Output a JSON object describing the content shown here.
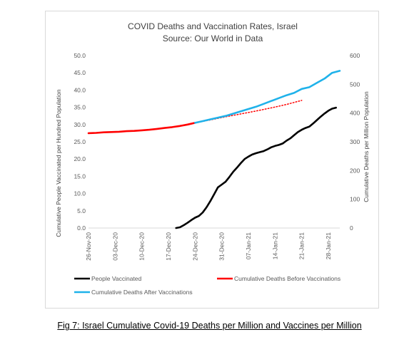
{
  "caption": "Fig 7: Israel Cumulative Covid-19 Deaths per Million and Vaccines per Million",
  "chart_data": {
    "type": "line",
    "title": "COVID Deaths and Vaccination Rates, Israel",
    "subtitle": "Source: Our World in Data",
    "ylabel": "Cumulative People Vaccinated per Hundred Population",
    "y2label": "Cumulative Deaths per Million Population",
    "xlabel": "",
    "x_start": "26-Nov-20",
    "x_end": "31-Jan-21",
    "ylim": [
      0,
      50
    ],
    "y2lim": [
      0,
      600
    ],
    "y_ticks": [
      "0.0",
      "5.0",
      "10.0",
      "15.0",
      "20.0",
      "25.0",
      "30.0",
      "35.0",
      "40.0",
      "45.0",
      "50.0"
    ],
    "y2_ticks": [
      "0",
      "100",
      "200",
      "300",
      "400",
      "500",
      "600"
    ],
    "x_ticks": [
      {
        "date": "2020-11-26",
        "label": "26-Nov-20"
      },
      {
        "date": "2020-12-03",
        "label": "03-Dec-20"
      },
      {
        "date": "2020-12-10",
        "label": "10-Dec-20"
      },
      {
        "date": "2020-12-17",
        "label": "17-Dec-20"
      },
      {
        "date": "2020-12-24",
        "label": "24-Dec-20"
      },
      {
        "date": "2020-12-31",
        "label": "31-Dec-20"
      },
      {
        "date": "2021-01-07",
        "label": "07-Jan-21"
      },
      {
        "date": "2021-01-14",
        "label": "14-Jan-21"
      },
      {
        "date": "2021-01-21",
        "label": "21-Jan-21"
      },
      {
        "date": "2021-01-28",
        "label": "28-Jan-21"
      }
    ],
    "grid": false,
    "legend_position": "bottom",
    "series": [
      {
        "name": "People Vaccinated",
        "axis": "left",
        "color": "#000000",
        "style": "solid",
        "points": [
          [
            "2020-12-19",
            0.0
          ],
          [
            "2020-12-20",
            0.2
          ],
          [
            "2020-12-21",
            0.8
          ],
          [
            "2020-12-22",
            1.5
          ],
          [
            "2020-12-23",
            2.3
          ],
          [
            "2020-12-24",
            3.0
          ],
          [
            "2020-12-25",
            3.5
          ],
          [
            "2020-12-26",
            4.5
          ],
          [
            "2020-12-27",
            6.0
          ],
          [
            "2020-12-28",
            7.8
          ],
          [
            "2020-12-29",
            9.8
          ],
          [
            "2020-12-30",
            11.8
          ],
          [
            "2020-12-31",
            12.6
          ],
          [
            "2021-01-01",
            13.4
          ],
          [
            "2021-01-02",
            14.8
          ],
          [
            "2021-01-03",
            16.3
          ],
          [
            "2021-01-04",
            17.5
          ],
          [
            "2021-01-05",
            18.8
          ],
          [
            "2021-01-06",
            20.0
          ],
          [
            "2021-01-07",
            20.7
          ],
          [
            "2021-01-08",
            21.3
          ],
          [
            "2021-01-09",
            21.7
          ],
          [
            "2021-01-10",
            22.0
          ],
          [
            "2021-01-11",
            22.3
          ],
          [
            "2021-01-12",
            22.8
          ],
          [
            "2021-01-13",
            23.4
          ],
          [
            "2021-01-14",
            23.8
          ],
          [
            "2021-01-15",
            24.1
          ],
          [
            "2021-01-16",
            24.5
          ],
          [
            "2021-01-17",
            25.3
          ],
          [
            "2021-01-18",
            26.0
          ],
          [
            "2021-01-19",
            26.9
          ],
          [
            "2021-01-20",
            27.8
          ],
          [
            "2021-01-21",
            28.5
          ],
          [
            "2021-01-22",
            29.0
          ],
          [
            "2021-01-23",
            29.4
          ],
          [
            "2021-01-24",
            30.3
          ],
          [
            "2021-01-25",
            31.3
          ],
          [
            "2021-01-26",
            32.3
          ],
          [
            "2021-01-27",
            33.2
          ],
          [
            "2021-01-28",
            34.0
          ],
          [
            "2021-01-29",
            34.6
          ],
          [
            "2021-01-30",
            34.9
          ]
        ]
      },
      {
        "name": "Cumulative Deaths Before Vaccinations",
        "axis": "right",
        "color": "#ff0000",
        "style": "solid",
        "points": [
          [
            "2020-11-26",
            330
          ],
          [
            "2020-11-28",
            331
          ],
          [
            "2020-11-30",
            333
          ],
          [
            "2020-12-02",
            334
          ],
          [
            "2020-12-04",
            335
          ],
          [
            "2020-12-06",
            337
          ],
          [
            "2020-12-08",
            338
          ],
          [
            "2020-12-10",
            340
          ],
          [
            "2020-12-12",
            342
          ],
          [
            "2020-12-14",
            345
          ],
          [
            "2020-12-16",
            348
          ],
          [
            "2020-12-18",
            351
          ],
          [
            "2020-12-20",
            355
          ],
          [
            "2020-12-22",
            360
          ],
          [
            "2020-12-24",
            366
          ]
        ]
      },
      {
        "name": "Projection",
        "axis": "right",
        "color": "#ff0000",
        "style": "dotted",
        "points": [
          [
            "2020-12-24",
            366
          ],
          [
            "2020-12-28",
            376
          ],
          [
            "2021-01-01",
            387
          ],
          [
            "2021-01-05",
            397
          ],
          [
            "2021-01-09",
            407
          ],
          [
            "2021-01-13",
            418
          ],
          [
            "2021-01-17",
            430
          ],
          [
            "2021-01-21",
            444
          ]
        ]
      },
      {
        "name": "Cumulative Deaths After Vaccinations",
        "axis": "right",
        "color": "#1fb2ea",
        "style": "solid",
        "points": [
          [
            "2020-12-24",
            366
          ],
          [
            "2020-12-26",
            372
          ],
          [
            "2020-12-28",
            378
          ],
          [
            "2020-12-30",
            384
          ],
          [
            "2021-01-01",
            390
          ],
          [
            "2021-01-03",
            398
          ],
          [
            "2021-01-05",
            406
          ],
          [
            "2021-01-07",
            414
          ],
          [
            "2021-01-09",
            422
          ],
          [
            "2021-01-11",
            432
          ],
          [
            "2021-01-13",
            442
          ],
          [
            "2021-01-15",
            452
          ],
          [
            "2021-01-17",
            462
          ],
          [
            "2021-01-19",
            470
          ],
          [
            "2021-01-21",
            484
          ],
          [
            "2021-01-23",
            490
          ],
          [
            "2021-01-25",
            505
          ],
          [
            "2021-01-27",
            520
          ],
          [
            "2021-01-29",
            540
          ],
          [
            "2021-01-31",
            547
          ]
        ]
      }
    ],
    "legend": [
      {
        "label": "People Vaccinated",
        "color": "#000000"
      },
      {
        "label": "Cumulative Deaths Before Vaccinations",
        "color": "#ff0000"
      },
      {
        "label": "Cumulative Deaths After Vaccinations",
        "color": "#1fb2ea"
      }
    ]
  }
}
